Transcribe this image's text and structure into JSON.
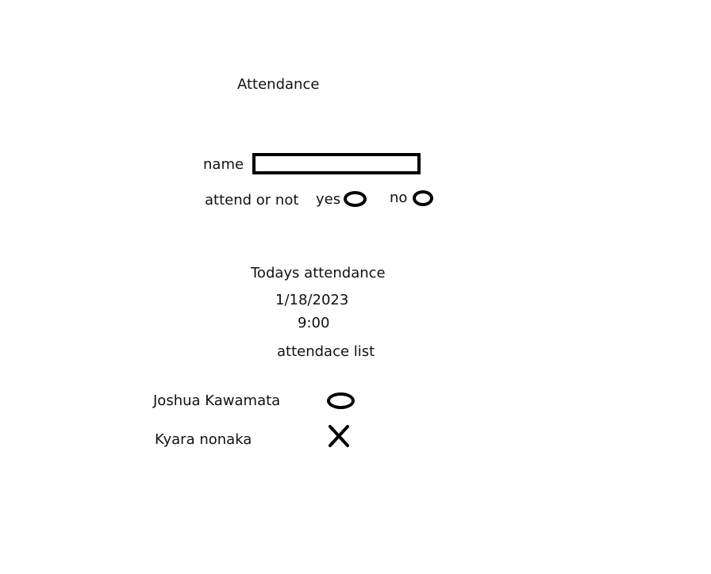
{
  "title": "Attendance",
  "form": {
    "name_label": "name",
    "name_value": "",
    "attend_label": "attend or not",
    "yes_label": "yes",
    "no_label": "no"
  },
  "today": {
    "heading": "Todays attendance",
    "date": "1/18/2023",
    "time": "9:00",
    "list_heading": "attendace list"
  },
  "attendance_list": [
    {
      "name": "Joshua Kawamata",
      "status_icon": "circle-icon"
    },
    {
      "name": "Kyara nonaka",
      "status_icon": "cross-icon"
    }
  ]
}
